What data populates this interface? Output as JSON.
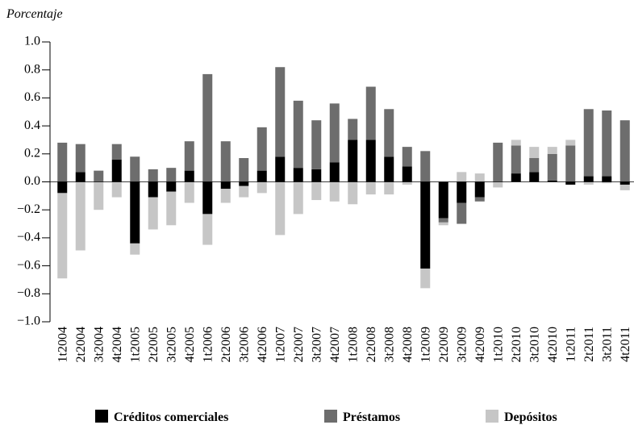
{
  "chart_data": {
    "type": "bar",
    "stacked": true,
    "y_label": "Porcentaje",
    "categories": [
      "1t2004",
      "2t2004",
      "3t2004",
      "4t2004",
      "1t2005",
      "2t2005",
      "3t2005",
      "4t2005",
      "1t2006",
      "2t2006",
      "3t2006",
      "4t2006",
      "1t2007",
      "2t2007",
      "3t2007",
      "4t2007",
      "1t2008",
      "2t2008",
      "3t2008",
      "4t2008",
      "1t2009",
      "2t2009",
      "3t2009",
      "4t2009",
      "1t2010",
      "2t2010",
      "3t2010",
      "4t2010",
      "1t2011",
      "2t2011",
      "3t2011",
      "4t2011"
    ],
    "series": [
      {
        "name": "Créditos comerciales",
        "color": "#000000",
        "values": [
          -0.08,
          0.07,
          0.0,
          0.16,
          -0.44,
          -0.11,
          -0.07,
          0.08,
          -0.23,
          -0.05,
          -0.03,
          0.08,
          0.18,
          0.1,
          0.09,
          0.14,
          0.3,
          0.3,
          0.18,
          0.11,
          -0.62,
          -0.26,
          -0.15,
          -0.11,
          0.0,
          0.06,
          0.07,
          0.01,
          -0.02,
          0.04,
          0.04,
          -0.02
        ]
      },
      {
        "name": "Préstamos",
        "color": "#6d6d6d",
        "values": [
          0.28,
          0.2,
          0.08,
          0.11,
          0.18,
          0.09,
          0.1,
          0.21,
          0.77,
          0.29,
          0.17,
          0.31,
          0.64,
          0.48,
          0.35,
          0.42,
          0.15,
          0.38,
          0.34,
          0.14,
          0.22,
          -0.03,
          -0.15,
          -0.03,
          0.28,
          0.2,
          0.1,
          0.19,
          0.26,
          0.48,
          0.47,
          0.44
        ]
      },
      {
        "name": "Depósitos",
        "color": "#c6c6c6",
        "values": [
          -0.61,
          -0.49,
          -0.2,
          -0.11,
          -0.08,
          -0.23,
          -0.24,
          -0.15,
          -0.22,
          -0.1,
          -0.08,
          -0.08,
          -0.38,
          -0.23,
          -0.13,
          -0.14,
          -0.16,
          -0.09,
          -0.09,
          -0.02,
          -0.14,
          -0.02,
          0.07,
          0.06,
          -0.04,
          0.04,
          0.08,
          0.05,
          0.04,
          -0.02,
          -0.01,
          -0.04
        ]
      }
    ],
    "ylim": [
      -1.0,
      1.0
    ],
    "yticks": [
      {
        "value": -1.0,
        "label": "−1.0"
      },
      {
        "value": -0.8,
        "label": "−0.8"
      },
      {
        "value": -0.6,
        "label": "−0.6"
      },
      {
        "value": -0.4,
        "label": "−0.4"
      },
      {
        "value": -0.2,
        "label": "−0.2"
      },
      {
        "value": 0,
        "label": "0.0"
      },
      {
        "value": 0.2,
        "label": "0.2"
      },
      {
        "value": 0.4,
        "label": "0.4"
      },
      {
        "value": 0.6,
        "label": "0.6"
      },
      {
        "value": 0.8,
        "label": "0.8"
      },
      {
        "value": 1.0,
        "label": "1.0"
      }
    ],
    "legend_position": "bottom"
  }
}
